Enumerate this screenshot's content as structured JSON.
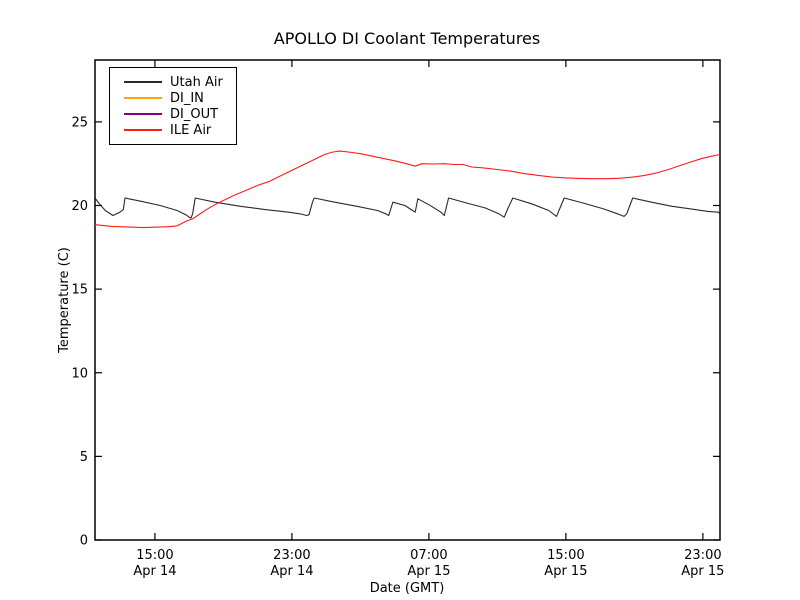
{
  "chart_data": {
    "type": "line",
    "title": "APOLLO DI Coolant Temperatures",
    "xlabel": "Date (GMT)",
    "ylabel": "Temperature (C)",
    "grid": false,
    "legend_position": "upper left",
    "x_units_hours_since": "Apr 14 00:00 GMT",
    "xlim": [
      11.5,
      48.0
    ],
    "ylim": [
      0,
      28.7
    ],
    "y_ticks": [
      0,
      5,
      10,
      15,
      20,
      25
    ],
    "x_ticks": [
      {
        "value": 15,
        "time": "15:00",
        "date": "Apr 14"
      },
      {
        "value": 23,
        "time": "23:00",
        "date": "Apr 14"
      },
      {
        "value": 31,
        "time": "07:00",
        "date": "Apr 15"
      },
      {
        "value": 39,
        "time": "15:00",
        "date": "Apr 15"
      },
      {
        "value": 47,
        "time": "23:00",
        "date": "Apr 15"
      }
    ],
    "series": [
      {
        "name": "Utah Air",
        "color": "#2a2a2a",
        "points": [
          [
            11.5,
            20.45
          ],
          [
            11.75,
            20.1
          ],
          [
            12.1,
            19.7
          ],
          [
            12.55,
            19.4
          ],
          [
            12.95,
            19.6
          ],
          [
            13.15,
            19.75
          ],
          [
            13.25,
            20.45
          ],
          [
            14.2,
            20.25
          ],
          [
            15.3,
            20.0
          ],
          [
            16.3,
            19.7
          ],
          [
            16.8,
            19.45
          ],
          [
            17.0,
            19.3
          ],
          [
            17.1,
            19.25
          ],
          [
            17.2,
            19.5
          ],
          [
            17.35,
            20.45
          ],
          [
            18.5,
            20.2
          ],
          [
            20.0,
            19.95
          ],
          [
            21.5,
            19.75
          ],
          [
            22.8,
            19.6
          ],
          [
            23.5,
            19.5
          ],
          [
            23.85,
            19.4
          ],
          [
            24.0,
            19.45
          ],
          [
            24.2,
            20.2
          ],
          [
            24.3,
            20.45
          ],
          [
            25.5,
            20.2
          ],
          [
            26.8,
            19.95
          ],
          [
            28.0,
            19.7
          ],
          [
            28.5,
            19.5
          ],
          [
            28.65,
            19.4
          ],
          [
            28.9,
            20.2
          ],
          [
            29.6,
            20.0
          ],
          [
            30.05,
            19.7
          ],
          [
            30.2,
            19.6
          ],
          [
            30.35,
            20.4
          ],
          [
            31.0,
            20.05
          ],
          [
            31.7,
            19.6
          ],
          [
            31.9,
            19.4
          ],
          [
            32.15,
            20.45
          ],
          [
            33.2,
            20.15
          ],
          [
            34.3,
            19.85
          ],
          [
            35.1,
            19.5
          ],
          [
            35.4,
            19.3
          ],
          [
            35.6,
            19.8
          ],
          [
            35.9,
            20.45
          ],
          [
            37.0,
            20.1
          ],
          [
            38.0,
            19.7
          ],
          [
            38.45,
            19.35
          ],
          [
            38.9,
            20.45
          ],
          [
            40.0,
            20.15
          ],
          [
            41.2,
            19.8
          ],
          [
            42.15,
            19.45
          ],
          [
            42.4,
            19.35
          ],
          [
            42.55,
            19.5
          ],
          [
            42.9,
            20.45
          ],
          [
            44.0,
            20.2
          ],
          [
            45.2,
            19.95
          ],
          [
            46.3,
            19.8
          ],
          [
            47.3,
            19.65
          ],
          [
            47.9,
            19.6
          ],
          [
            48.0,
            19.5
          ]
        ]
      },
      {
        "name": "DI_IN",
        "color": "#ffa500",
        "points": []
      },
      {
        "name": "DI_OUT",
        "color": "#800080",
        "points": []
      },
      {
        "name": "ILE Air",
        "color": "#ff1a1a",
        "points": [
          [
            11.5,
            18.85
          ],
          [
            12.0,
            18.8
          ],
          [
            12.5,
            18.75
          ],
          [
            13.3,
            18.72
          ],
          [
            14.3,
            18.68
          ],
          [
            15.0,
            18.7
          ],
          [
            15.8,
            18.73
          ],
          [
            16.3,
            18.78
          ],
          [
            16.6,
            18.95
          ],
          [
            16.9,
            19.1
          ],
          [
            17.2,
            19.2
          ],
          [
            17.5,
            19.4
          ],
          [
            18.0,
            19.75
          ],
          [
            18.5,
            20.05
          ],
          [
            19.0,
            20.3
          ],
          [
            19.6,
            20.6
          ],
          [
            20.3,
            20.9
          ],
          [
            21.0,
            21.2
          ],
          [
            21.7,
            21.45
          ],
          [
            22.4,
            21.8
          ],
          [
            23.1,
            22.15
          ],
          [
            23.8,
            22.5
          ],
          [
            24.4,
            22.8
          ],
          [
            24.9,
            23.05
          ],
          [
            25.4,
            23.2
          ],
          [
            25.8,
            23.25
          ],
          [
            26.3,
            23.2
          ],
          [
            27.0,
            23.1
          ],
          [
            27.7,
            22.95
          ],
          [
            28.4,
            22.8
          ],
          [
            29.1,
            22.65
          ],
          [
            29.7,
            22.5
          ],
          [
            30.2,
            22.35
          ],
          [
            30.6,
            22.5
          ],
          [
            31.2,
            22.48
          ],
          [
            31.9,
            22.5
          ],
          [
            32.5,
            22.45
          ],
          [
            33.0,
            22.45
          ],
          [
            33.5,
            22.3
          ],
          [
            34.2,
            22.25
          ],
          [
            35.0,
            22.15
          ],
          [
            35.8,
            22.05
          ],
          [
            36.6,
            21.9
          ],
          [
            37.4,
            21.8
          ],
          [
            38.2,
            21.7
          ],
          [
            39.0,
            21.65
          ],
          [
            39.8,
            21.62
          ],
          [
            40.6,
            21.6
          ],
          [
            41.4,
            21.6
          ],
          [
            42.2,
            21.63
          ],
          [
            42.9,
            21.7
          ],
          [
            43.6,
            21.8
          ],
          [
            44.3,
            21.95
          ],
          [
            45.0,
            22.15
          ],
          [
            45.7,
            22.4
          ],
          [
            46.3,
            22.6
          ],
          [
            46.9,
            22.8
          ],
          [
            47.5,
            22.95
          ],
          [
            48.0,
            23.05
          ]
        ]
      }
    ]
  }
}
